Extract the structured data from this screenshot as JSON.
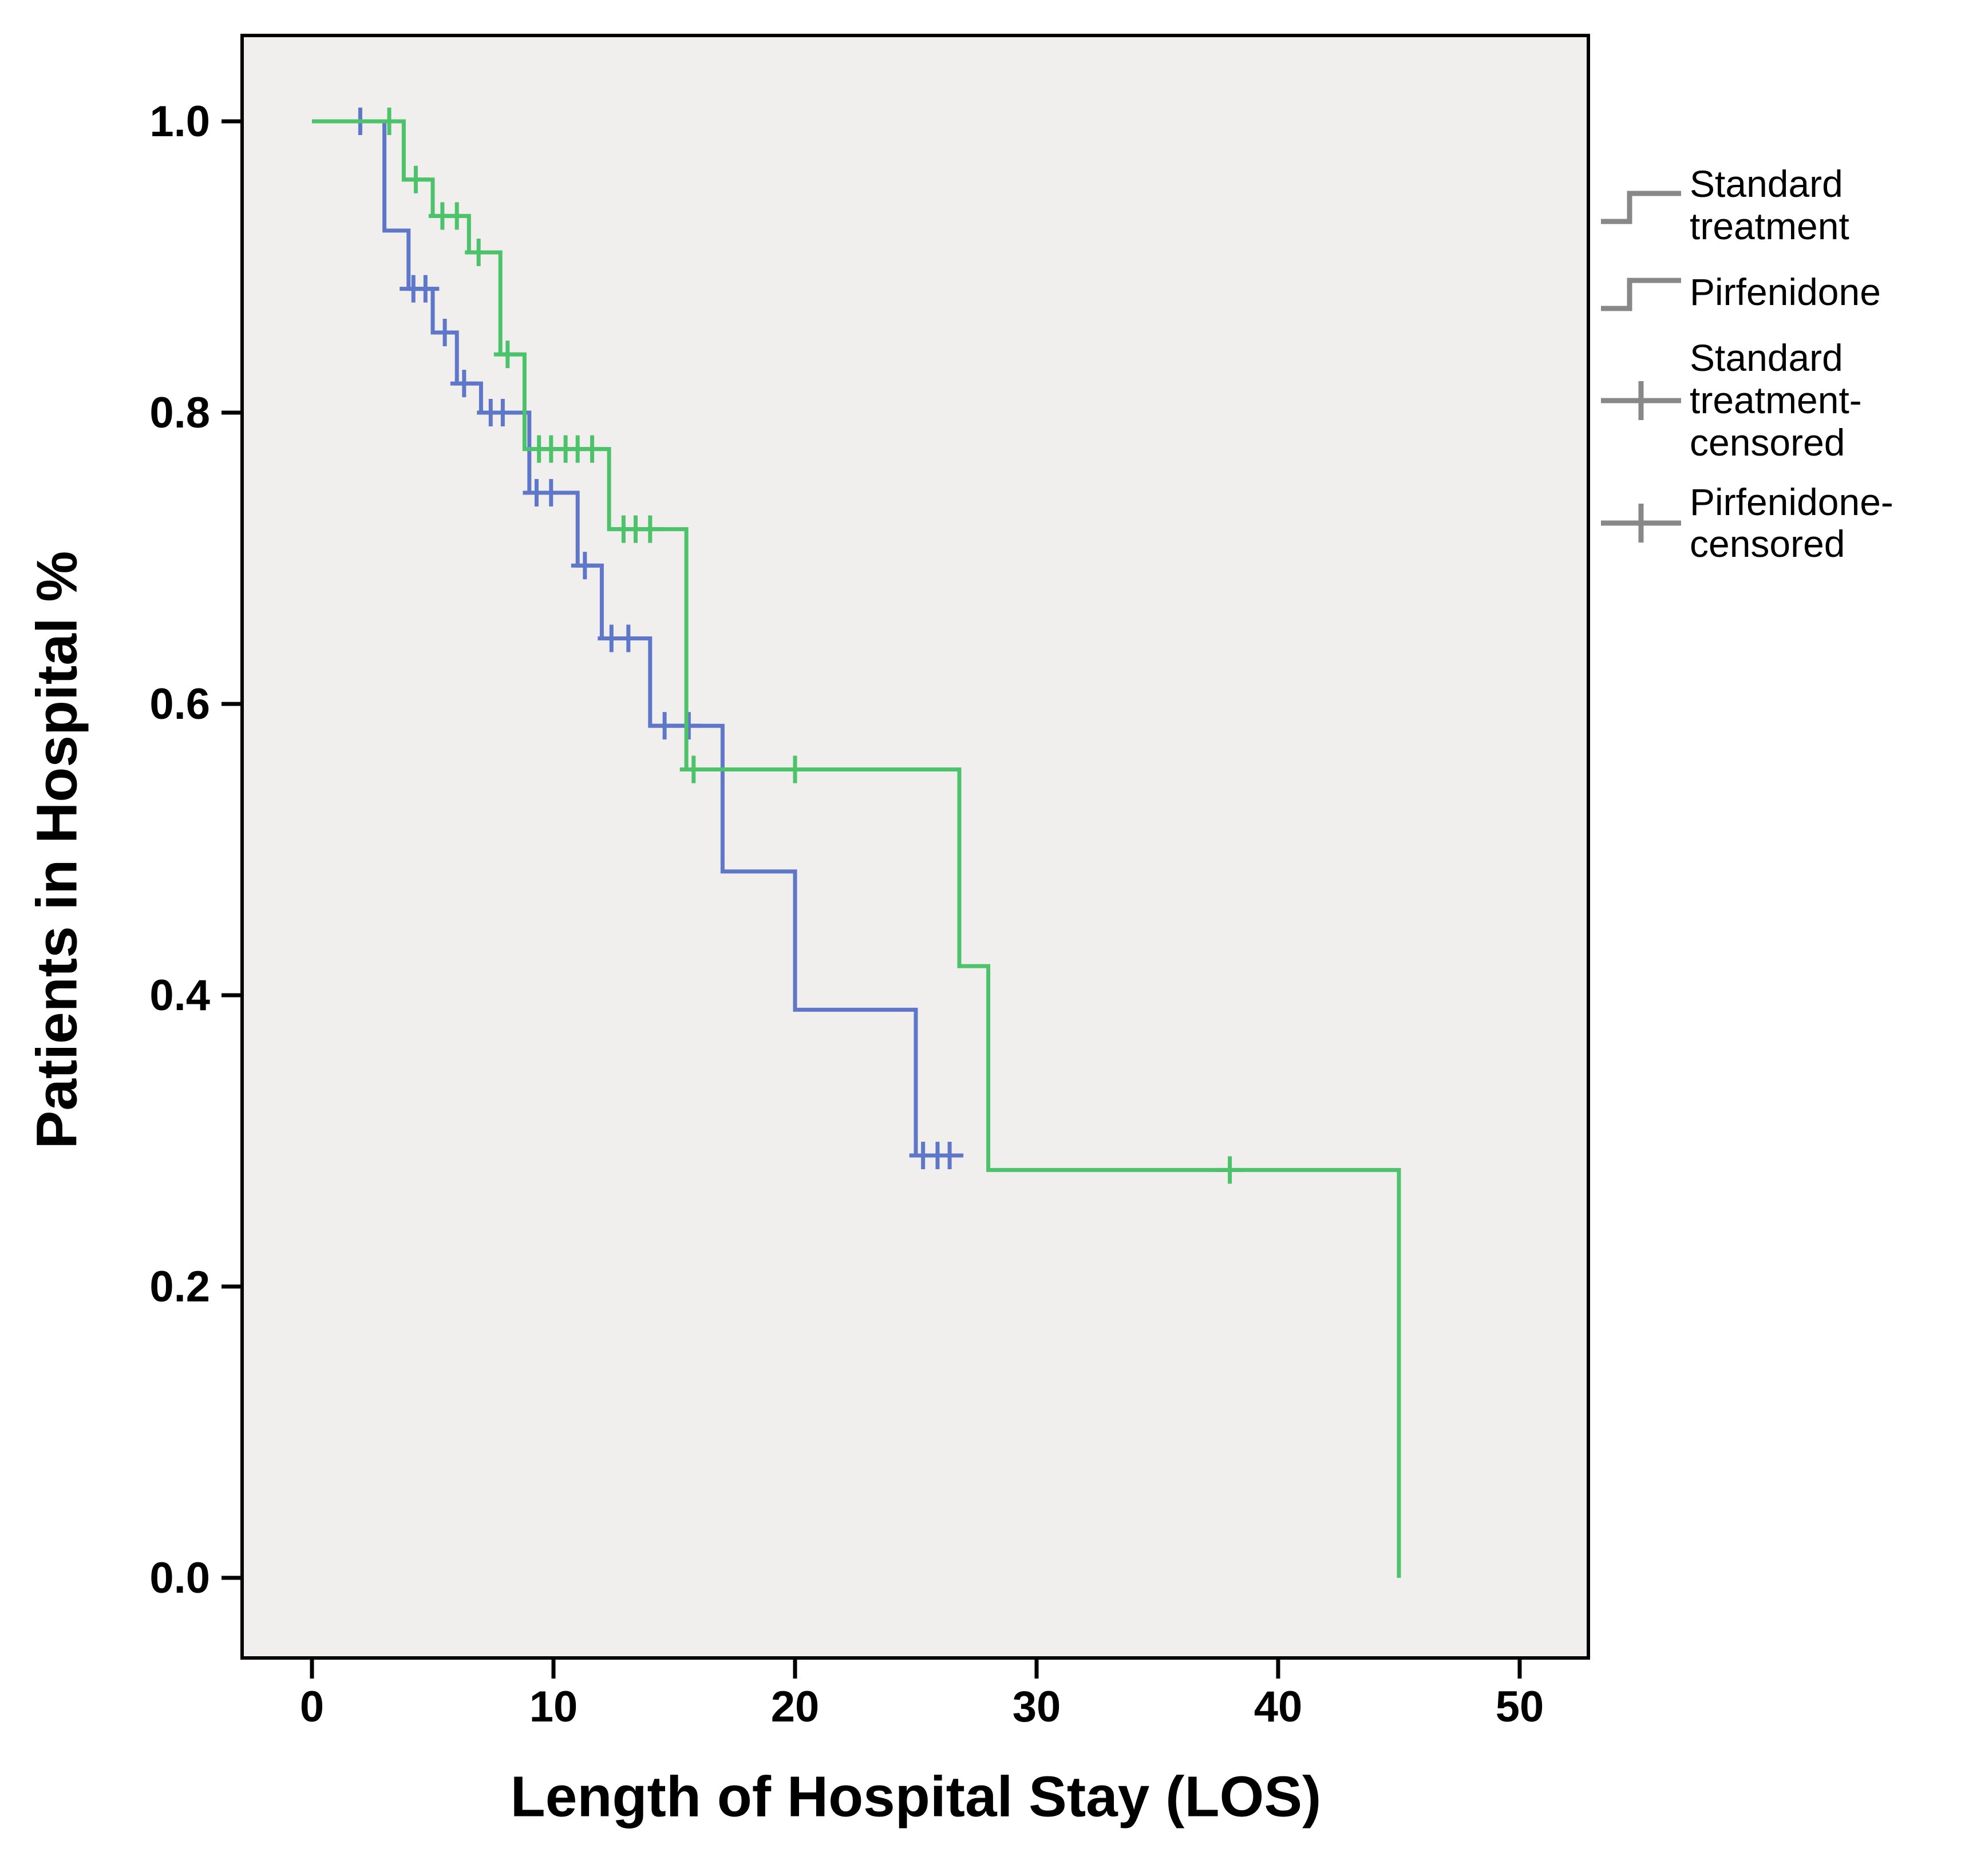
{
  "figure": {
    "background": "#ffffff",
    "plot_background": "#f0efed",
    "border_color": "#000000"
  },
  "legend": {
    "items": [
      {
        "label": "Standard\ntreatment",
        "glyph": "step-line",
        "series": "Standard treatment"
      },
      {
        "label": "Pirfenidone",
        "glyph": "step-line",
        "series": "Pirfenidone"
      },
      {
        "label": "Standard\ntreatment-\ncensored",
        "glyph": "censored-plus",
        "series": "Standard treatment"
      },
      {
        "label": "Pirfenidone-\ncensored",
        "glyph": "censored-plus",
        "series": "Pirfenidone"
      }
    ]
  },
  "chart_data": {
    "type": "line",
    "variant": "kaplan-meier-step",
    "title": "",
    "xlabel": "Length of Hospital Stay (LOS)",
    "ylabel": "Patients in Hospital %",
    "xlim": [
      0,
      50
    ],
    "ylim": [
      0.0,
      1.0
    ],
    "x_ticks": [
      0,
      10,
      20,
      30,
      40,
      50
    ],
    "x_tick_labels": [
      "0",
      "10",
      "20",
      "30",
      "40",
      "50"
    ],
    "y_ticks": [
      0.0,
      0.2,
      0.4,
      0.6,
      0.8,
      1.0
    ],
    "y_tick_labels": [
      "0.0",
      "0.2",
      "0.4",
      "0.6",
      "0.8",
      "1.0"
    ],
    "grid": false,
    "legend_position": "right",
    "series": [
      {
        "name": "Standard treatment",
        "color": "#5f77c8",
        "step_points": [
          [
            0,
            1.0
          ],
          [
            3,
            1.0
          ],
          [
            3,
            0.925
          ],
          [
            4,
            0.925
          ],
          [
            4,
            0.885
          ],
          [
            5,
            0.885
          ],
          [
            5,
            0.855
          ],
          [
            6,
            0.855
          ],
          [
            6,
            0.82
          ],
          [
            7,
            0.82
          ],
          [
            7,
            0.8
          ],
          [
            9,
            0.8
          ],
          [
            9,
            0.745
          ],
          [
            11,
            0.745
          ],
          [
            11,
            0.695
          ],
          [
            12,
            0.695
          ],
          [
            12,
            0.645
          ],
          [
            14,
            0.645
          ],
          [
            14,
            0.585
          ],
          [
            17,
            0.585
          ],
          [
            17,
            0.485
          ],
          [
            20,
            0.485
          ],
          [
            20,
            0.39
          ],
          [
            25,
            0.39
          ],
          [
            25,
            0.29
          ],
          [
            26.5,
            0.29
          ]
        ],
        "censored_points": [
          [
            2,
            1.0
          ],
          [
            4.2,
            0.885
          ],
          [
            4.7,
            0.885
          ],
          [
            5.5,
            0.855
          ],
          [
            6.3,
            0.82
          ],
          [
            7.4,
            0.8
          ],
          [
            7.9,
            0.8
          ],
          [
            9.3,
            0.745
          ],
          [
            9.9,
            0.745
          ],
          [
            11.3,
            0.695
          ],
          [
            12.4,
            0.645
          ],
          [
            13.1,
            0.645
          ],
          [
            14.6,
            0.585
          ],
          [
            15.6,
            0.585
          ],
          [
            25.3,
            0.29
          ],
          [
            25.9,
            0.29
          ],
          [
            26.4,
            0.29
          ]
        ]
      },
      {
        "name": "Pirfenidone",
        "color": "#4cc26a",
        "step_points": [
          [
            0,
            1.0
          ],
          [
            3.8,
            1.0
          ],
          [
            3.8,
            0.96
          ],
          [
            5,
            0.96
          ],
          [
            5,
            0.935
          ],
          [
            6.5,
            0.935
          ],
          [
            6.5,
            0.91
          ],
          [
            7.8,
            0.91
          ],
          [
            7.8,
            0.84
          ],
          [
            8.8,
            0.84
          ],
          [
            8.8,
            0.775
          ],
          [
            12.3,
            0.775
          ],
          [
            12.3,
            0.72
          ],
          [
            15.5,
            0.72
          ],
          [
            15.5,
            0.555
          ],
          [
            26.8,
            0.555
          ],
          [
            26.8,
            0.42
          ],
          [
            28,
            0.42
          ],
          [
            28,
            0.28
          ],
          [
            45,
            0.28
          ],
          [
            45,
            0.0
          ]
        ],
        "censored_points": [
          [
            3.2,
            1.0
          ],
          [
            4.3,
            0.96
          ],
          [
            5.4,
            0.935
          ],
          [
            6.0,
            0.935
          ],
          [
            6.9,
            0.91
          ],
          [
            8.1,
            0.84
          ],
          [
            9.4,
            0.775
          ],
          [
            9.9,
            0.775
          ],
          [
            10.5,
            0.775
          ],
          [
            11.0,
            0.775
          ],
          [
            11.6,
            0.775
          ],
          [
            12.9,
            0.72
          ],
          [
            13.4,
            0.72
          ],
          [
            14.0,
            0.72
          ],
          [
            15.8,
            0.555
          ],
          [
            20,
            0.555
          ],
          [
            38,
            0.28
          ]
        ]
      }
    ]
  }
}
